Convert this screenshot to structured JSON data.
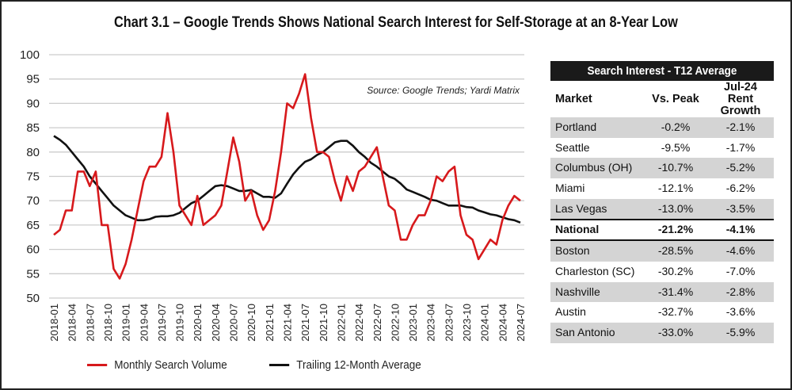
{
  "title": "Chart 3.1 – Google Trends Shows National Search Interest for Self-Storage at an 8-Year Low",
  "source": "Source: Google Trends; Yardi Matrix",
  "colors": {
    "monthly": "#d7191c",
    "average": "#111111",
    "grid": "#cccccc",
    "table_header_bg": "#1a1a1a",
    "row_shade": "#d4d4d4"
  },
  "chart_data": {
    "type": "line",
    "title": "Chart 3.1 – Google Trends Shows National Search Interest for Self-Storage at an 8-Year Low",
    "xlabel": "",
    "ylabel": "",
    "ylim": [
      50,
      100
    ],
    "yticks": [
      50,
      55,
      60,
      65,
      70,
      75,
      80,
      85,
      90,
      95,
      100
    ],
    "grid": true,
    "legend_position": "bottom",
    "x_tick_labels": [
      "2018-01",
      "2018-04",
      "2018-07",
      "2018-10",
      "2019-01",
      "2019-04",
      "2019-07",
      "2019-10",
      "2020-01",
      "2020-04",
      "2020-07",
      "2020-10",
      "2021-01",
      "2021-04",
      "2021-07",
      "2021-10",
      "2022-01",
      "2022-04",
      "2022-07",
      "2022-10",
      "2023-01",
      "2023-04",
      "2023-07",
      "2023-10",
      "2024-01",
      "2024-04",
      "2024-07"
    ],
    "x_start": "2018-01",
    "x_end": "2024-07",
    "series": [
      {
        "name": "Monthly Search Volume",
        "color": "#d7191c",
        "values": [
          63,
          64,
          68,
          68,
          76,
          76,
          73,
          76,
          65,
          65,
          56,
          54,
          57,
          62,
          68,
          74,
          77,
          77,
          79,
          88,
          80,
          69,
          67,
          65,
          71,
          65,
          66,
          67,
          69,
          76,
          83,
          78,
          70,
          72,
          67,
          64,
          66,
          72,
          80,
          90,
          89,
          92,
          96,
          87,
          80,
          80,
          79,
          74,
          70,
          75,
          72,
          76,
          77,
          79,
          81,
          75,
          69,
          68,
          62,
          62,
          65,
          67,
          67,
          70,
          75,
          74,
          76,
          77,
          67,
          63,
          62,
          58,
          60,
          62,
          61,
          66,
          69,
          71,
          70
        ]
      },
      {
        "name": "Trailing 12-Month Average",
        "color": "#111111",
        "values": [
          83.3,
          82.5,
          81.5,
          80,
          78.5,
          77,
          75,
          73.5,
          72,
          70.5,
          69,
          68,
          67,
          66.5,
          66,
          66,
          66.2,
          66.7,
          66.8,
          66.8,
          67,
          67.5,
          68.5,
          69.5,
          70,
          71,
          72,
          73,
          73.2,
          73,
          72.5,
          72,
          72,
          72.2,
          71.5,
          70.8,
          70.8,
          70.6,
          71.5,
          73.5,
          75.4,
          76.8,
          78,
          78.5,
          79.4,
          80,
          81,
          82,
          82.3,
          82.3,
          81.3,
          80,
          79,
          77.8,
          77,
          76,
          75,
          74.5,
          73.5,
          72.3,
          71.8,
          71.3,
          70.8,
          70.2,
          70,
          69.5,
          69,
          69,
          69,
          68.7,
          68.6,
          68,
          67.6,
          67.2,
          67,
          66.6,
          66.2,
          66,
          65.5
        ]
      }
    ]
  },
  "table": {
    "title": "Search Interest - T12 Average",
    "headers": {
      "market": "Market",
      "vs_peak": "Vs. Peak",
      "rent_line1": "Jul-24",
      "rent_line2": "Rent Growth"
    },
    "rows": [
      {
        "market": "Portland",
        "vs_peak": "-0.2%",
        "rent": "-2.1%"
      },
      {
        "market": "Seattle",
        "vs_peak": "-9.5%",
        "rent": "-1.7%"
      },
      {
        "market": "Columbus (OH)",
        "vs_peak": "-10.7%",
        "rent": "-5.2%"
      },
      {
        "market": "Miami",
        "vs_peak": "-12.1%",
        "rent": "-6.2%"
      },
      {
        "market": "Las Vegas",
        "vs_peak": "-13.0%",
        "rent": "-3.5%"
      },
      {
        "market": "National",
        "vs_peak": "-21.2%",
        "rent": "-4.1%"
      },
      {
        "market": "Boston",
        "vs_peak": "-28.5%",
        "rent": "-4.6%"
      },
      {
        "market": "Charleston (SC)",
        "vs_peak": "-30.2%",
        "rent": "-7.0%"
      },
      {
        "market": "Nashville",
        "vs_peak": "-31.4%",
        "rent": "-2.8%"
      },
      {
        "market": "Austin",
        "vs_peak": "-32.7%",
        "rent": "-3.6%"
      },
      {
        "market": "San Antonio",
        "vs_peak": "-33.0%",
        "rent": "-5.9%"
      }
    ]
  }
}
